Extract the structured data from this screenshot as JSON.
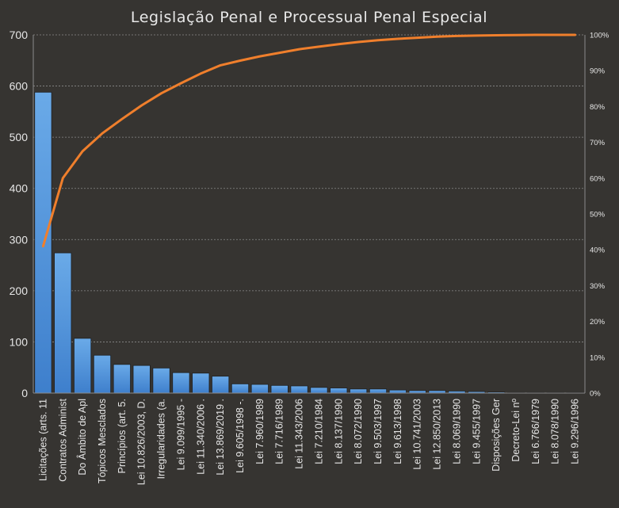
{
  "chart_data": {
    "type": "bar",
    "title": "Legislação Penal e Processual Penal Especial",
    "categories": [
      "Licitações (arts. 11",
      "Contratos Administ",
      "Do Âmbito de Apl",
      "Tópicos Mesclados",
      "Princípios (art. 5.",
      "Lei 10.826/2003, D.",
      "Irregularidades (a.",
      "Lei 9.099/1995 -",
      "Lei 11.340/2006 .",
      "Lei 13.869/2019 .",
      "Lei 9.605/1998 -.",
      "Lei 7.960/1989",
      "Lei 7.716/1989",
      "Lei 11.343/2006",
      "Lei 7.210/1984",
      "Lei 8.137/1990",
      "Lei 8.072/1990",
      "Lei 9.503/1997",
      "Lei 9.613/1998",
      "Lei 10.741/2003",
      "Lei 12.850/2013",
      "Lei 8.069/1990",
      "Lei 9.455/1997",
      "Disposições Ger",
      "Decreto-Lei nº",
      "Lei 6.766/1979",
      "Lei 8.078/1990",
      "Lei 9.296/1996"
    ],
    "series": [
      {
        "type": "bar",
        "axis": "left",
        "color": "#4a8fd8",
        "values": [
          588,
          274,
          107,
          74,
          56,
          54,
          49,
          40,
          39,
          33,
          18,
          17,
          15,
          14,
          11,
          10,
          8,
          8,
          6,
          5,
          5,
          4,
          3,
          2,
          1,
          1,
          1,
          1
        ]
      },
      {
        "type": "line",
        "axis": "right",
        "color": "#f07f2c",
        "values": [
          41,
          60,
          67.5,
          72.5,
          76.5,
          80.3,
          83.7,
          86.5,
          89.2,
          91.5,
          92.8,
          94,
          95,
          96,
          96.7,
          97.4,
          98,
          98.5,
          98.9,
          99.2,
          99.5,
          99.7,
          99.8,
          99.9,
          99.95,
          100,
          100,
          100
        ]
      }
    ],
    "yticks": [
      "0",
      "100",
      "200",
      "300",
      "400",
      "500",
      "600",
      "700"
    ],
    "y2ticks": [
      "0%",
      "10%",
      "20%",
      "30%",
      "40%",
      "50%",
      "60%",
      "70%",
      "80%",
      "90%",
      "100%"
    ],
    "ylim": [
      0,
      700
    ],
    "y2lim": [
      0,
      100
    ],
    "grid": true,
    "legend": "none",
    "colors": {
      "background": "#363431",
      "bar_fill_top": "#6aaae8",
      "bar_fill_bottom": "#3e7fcc",
      "line": "#f07f2c",
      "text": "#e6e6e6",
      "grid": "#8a8a8a"
    }
  }
}
